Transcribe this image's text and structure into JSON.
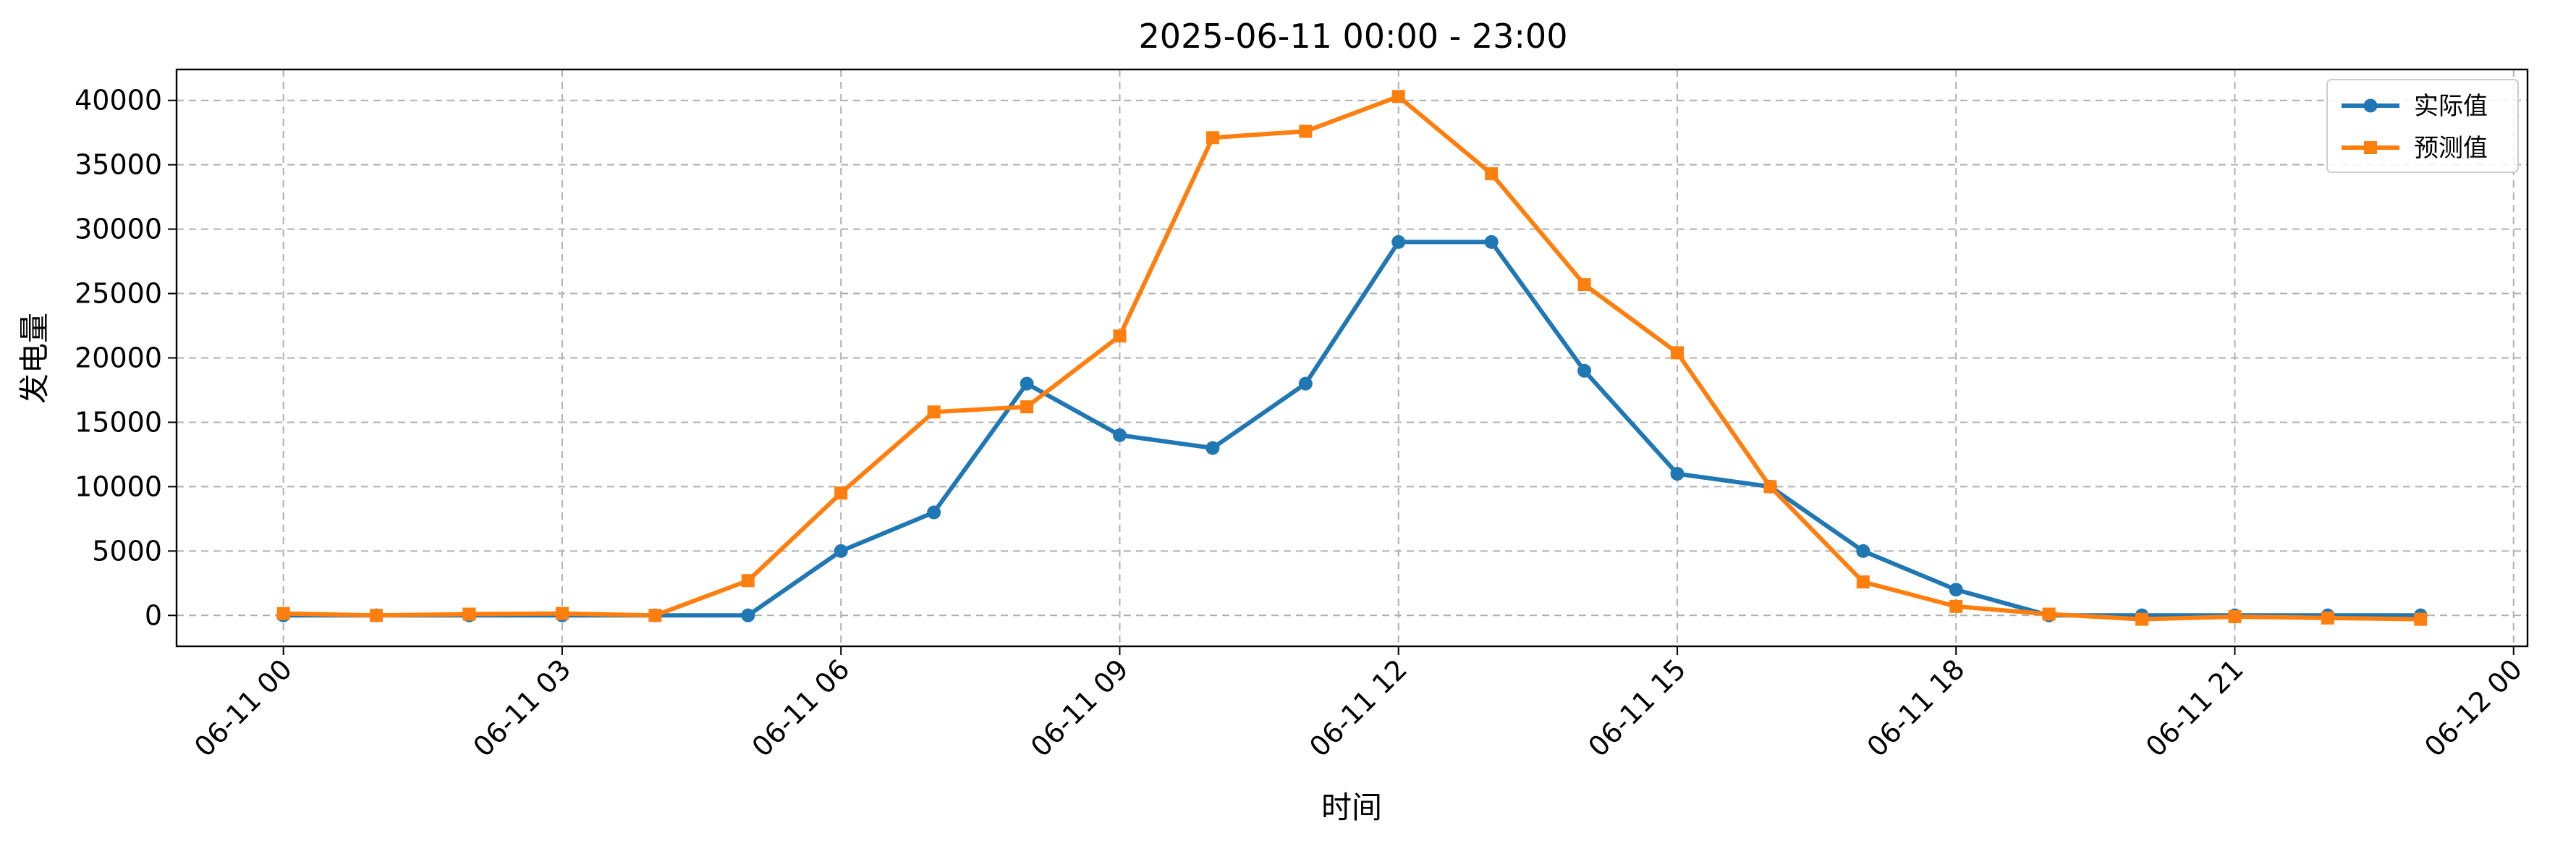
{
  "chart_data": {
    "type": "line",
    "title": "2025-06-11 00:00 - 23:00",
    "xlabel": "时间",
    "ylabel": "发电量",
    "x_tick_labels": [
      "06-11 00",
      "06-11 03",
      "06-11 06",
      "06-11 09",
      "06-11 12",
      "06-11 15",
      "06-11 18",
      "06-11 21",
      "06-12 00"
    ],
    "x_ticks_hours": [
      0,
      3,
      6,
      9,
      12,
      15,
      18,
      21,
      24
    ],
    "y_ticks": [
      0,
      5000,
      10000,
      15000,
      20000,
      25000,
      30000,
      35000,
      40000
    ],
    "xlim_hours": [
      -1.15,
      24.15
    ],
    "ylim": [
      -2400,
      42400
    ],
    "grid": true,
    "legend_position": "upper-right",
    "x_hours": [
      0,
      1,
      2,
      3,
      4,
      5,
      6,
      7,
      8,
      9,
      10,
      11,
      12,
      13,
      14,
      15,
      16,
      17,
      18,
      19,
      20,
      21,
      22,
      23
    ],
    "series": [
      {
        "name": "实际值",
        "color": "#1f77b4",
        "marker": "circle",
        "values": [
          0,
          0,
          0,
          0,
          0,
          0,
          5000,
          8000,
          18000,
          14000,
          13000,
          18000,
          29000,
          29000,
          19000,
          11000,
          10000,
          5000,
          2000,
          0,
          0,
          0,
          0,
          0
        ]
      },
      {
        "name": "预测值",
        "color": "#ff7f0e",
        "marker": "square",
        "values": [
          150,
          0,
          100,
          150,
          0,
          2700,
          9500,
          15800,
          16200,
          21700,
          37100,
          37600,
          40300,
          34300,
          25700,
          20400,
          10000,
          2600,
          700,
          100,
          -300,
          -100,
          -200,
          -300
        ]
      }
    ]
  }
}
